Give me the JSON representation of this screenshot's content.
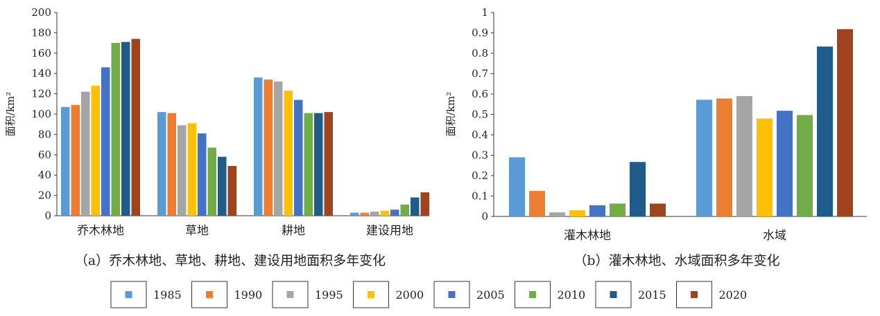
{
  "chart_data": [
    {
      "type": "bar",
      "ylabel": "面积/km²",
      "ylim": [
        0,
        200
      ],
      "yticks": [
        0,
        20,
        40,
        60,
        80,
        100,
        120,
        140,
        160,
        180,
        200
      ],
      "categories": [
        "乔木林地",
        "草地",
        "耕地",
        "建设用地"
      ],
      "series": [
        {
          "name": "1985",
          "values": [
            107,
            102,
            136,
            3
          ]
        },
        {
          "name": "1990",
          "values": [
            109,
            101,
            134,
            3
          ]
        },
        {
          "name": "1995",
          "values": [
            122,
            89,
            132,
            4
          ]
        },
        {
          "name": "2000",
          "values": [
            128,
            91,
            123,
            5
          ]
        },
        {
          "name": "2005",
          "values": [
            146,
            81,
            114,
            6
          ]
        },
        {
          "name": "2010",
          "values": [
            170,
            67,
            101,
            11
          ]
        },
        {
          "name": "2015",
          "values": [
            171,
            58,
            101,
            18
          ]
        },
        {
          "name": "2020",
          "values": [
            174,
            49,
            102,
            23
          ]
        }
      ],
      "caption": "（a）乔木林地、草地、耕地、建设用地面积多年变化",
      "grid": false
    },
    {
      "type": "bar",
      "ylabel": "面积/km²",
      "ylim": [
        0,
        1
      ],
      "yticks": [
        "0",
        "0.1",
        "0.2",
        "0.3",
        "0.4",
        "0.5",
        "0.6",
        "0.7",
        "0.8",
        "0.9",
        "1"
      ],
      "categories": [
        "灌木林地",
        "水域"
      ],
      "series": [
        {
          "name": "1985",
          "values": [
            0.29,
            0.572
          ]
        },
        {
          "name": "1990",
          "values": [
            0.125,
            0.578
          ]
        },
        {
          "name": "1995",
          "values": [
            0.02,
            0.59
          ]
        },
        {
          "name": "2000",
          "values": [
            0.03,
            0.48
          ]
        },
        {
          "name": "2005",
          "values": [
            0.055,
            0.518
          ]
        },
        {
          "name": "2010",
          "values": [
            0.063,
            0.497
          ]
        },
        {
          "name": "2015",
          "values": [
            0.267,
            0.833
          ]
        },
        {
          "name": "2020",
          "values": [
            0.063,
            0.918
          ]
        }
      ],
      "caption": "（b）灌木林地、水域面积多年变化",
      "grid": false
    }
  ],
  "legend": {
    "placement": "bottom",
    "items": [
      {
        "label": "1985",
        "color": "#5b9bd5"
      },
      {
        "label": "1990",
        "color": "#ed7d31"
      },
      {
        "label": "1995",
        "color": "#a5a5a5"
      },
      {
        "label": "2000",
        "color": "#ffc000"
      },
      {
        "label": "2005",
        "color": "#4472c4"
      },
      {
        "label": "2010",
        "color": "#70ad47"
      },
      {
        "label": "2015",
        "color": "#1f5c8b"
      },
      {
        "label": "2020",
        "color": "#a0441f"
      }
    ]
  }
}
